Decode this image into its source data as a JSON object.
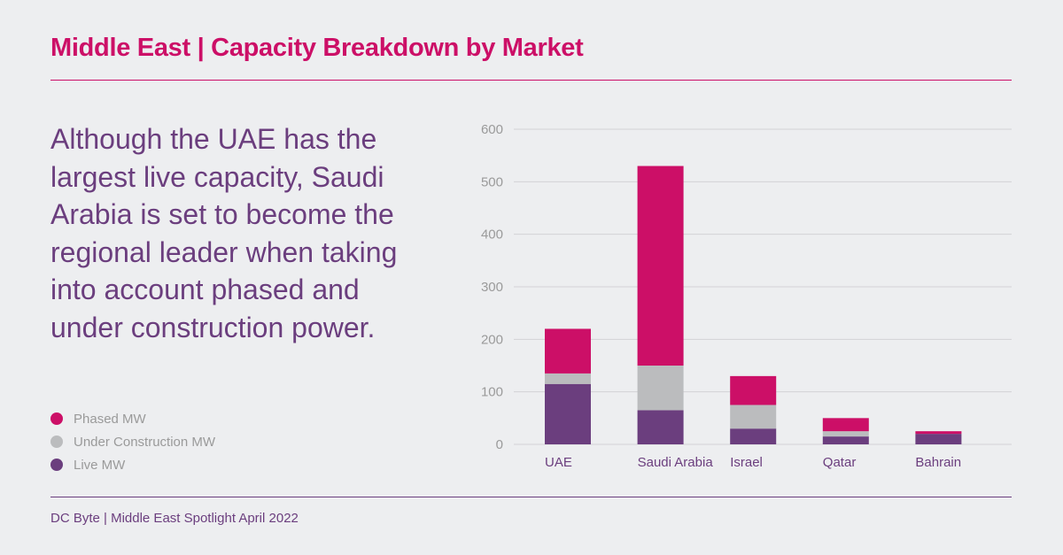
{
  "title": "Middle East | Capacity Breakdown by Market",
  "headline": "Although the UAE has the largest live capacity, Saudi Arabia is set to become the regional leader when taking into account phased and under construction power.",
  "footer": "DC Byte | Middle East Spotlight April 2022",
  "colors": {
    "phased": "#cc0f67",
    "under_construction": "#bbbcbe",
    "live": "#6b3e7e"
  },
  "chart_data": {
    "type": "bar",
    "stacked": true,
    "categories": [
      "UAE",
      "Saudi Arabia",
      "Israel",
      "Qatar",
      "Bahrain"
    ],
    "series": [
      {
        "name": "Live MW",
        "color": "#6b3e7e",
        "values": [
          115,
          65,
          30,
          15,
          20
        ]
      },
      {
        "name": "Under Construction MW",
        "color": "#bbbcbe",
        "values": [
          20,
          85,
          45,
          10,
          0
        ]
      },
      {
        "name": "Phased MW",
        "color": "#cc0f67",
        "values": [
          85,
          380,
          55,
          25,
          5
        ]
      }
    ],
    "yticks": [
      0,
      100,
      200,
      300,
      400,
      500,
      600
    ],
    "ylim": [
      0,
      600
    ],
    "grid": true,
    "legend_placement": "left",
    "legend_order": [
      "Phased MW",
      "Under Construction MW",
      "Live MW"
    ]
  }
}
